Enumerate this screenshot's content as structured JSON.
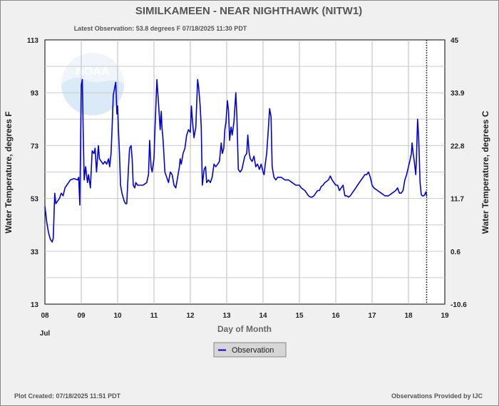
{
  "chart_data": {
    "type": "line",
    "title": "SIMILKAMEEN - NEAR NIGHTHAWK  (NITW1)",
    "subtitle": "Latest Observation: 53.8 degrees F 07/18/2025 11:30 PDT",
    "ylabel": "Water Temperature, degrees F",
    "ylabel_right": "Water Temperature, degrees C",
    "xlabel": "Day of Month",
    "x_sublabel": "Jul",
    "xlim": [
      8,
      19
    ],
    "ylim": [
      13,
      113
    ],
    "x_ticks": [
      "08",
      "09",
      "10",
      "11",
      "12",
      "13",
      "14",
      "15",
      "16",
      "17",
      "18",
      "19"
    ],
    "y_ticks": [
      "13",
      "33",
      "53",
      "73",
      "93",
      "113"
    ],
    "y_ticks_right": [
      "-10.6",
      "0.6",
      "11.7",
      "22.8",
      "33.9",
      "45"
    ],
    "latest_observation_x": 18.5,
    "grid": true,
    "legend_position": "bottom",
    "series": [
      {
        "name": "Observation",
        "color": "#0000dd",
        "points": [
          [
            8.0,
            50
          ],
          [
            8.05,
            44
          ],
          [
            8.1,
            40
          ],
          [
            8.15,
            37.5
          ],
          [
            8.2,
            36.5
          ],
          [
            8.23,
            38
          ],
          [
            8.27,
            55
          ],
          [
            8.3,
            51
          ],
          [
            8.35,
            52
          ],
          [
            8.4,
            53
          ],
          [
            8.45,
            55
          ],
          [
            8.5,
            54
          ],
          [
            8.55,
            57
          ],
          [
            8.6,
            58
          ],
          [
            8.65,
            59
          ],
          [
            8.7,
            60
          ],
          [
            8.8,
            60.5
          ],
          [
            8.9,
            60
          ],
          [
            8.93,
            61
          ],
          [
            8.96,
            50.5
          ],
          [
            9.0,
            96
          ],
          [
            9.03,
            98
          ],
          [
            9.05,
            80
          ],
          [
            9.08,
            60
          ],
          [
            9.12,
            65
          ],
          [
            9.17,
            59
          ],
          [
            9.2,
            62
          ],
          [
            9.25,
            57
          ],
          [
            9.3,
            71
          ],
          [
            9.35,
            70
          ],
          [
            9.38,
            72
          ],
          [
            9.42,
            63
          ],
          [
            9.47,
            73
          ],
          [
            9.5,
            68
          ],
          [
            9.55,
            67
          ],
          [
            9.6,
            66
          ],
          [
            9.65,
            67
          ],
          [
            9.7,
            66
          ],
          [
            9.75,
            68
          ],
          [
            9.78,
            65
          ],
          [
            9.82,
            70
          ],
          [
            9.85,
            80
          ],
          [
            9.88,
            92
          ],
          [
            9.92,
            95
          ],
          [
            9.95,
            97
          ],
          [
            9.98,
            85
          ],
          [
            10.0,
            88
          ],
          [
            10.02,
            80
          ],
          [
            10.05,
            70
          ],
          [
            10.08,
            58
          ],
          [
            10.12,
            55
          ],
          [
            10.18,
            52
          ],
          [
            10.22,
            51
          ],
          [
            10.25,
            51
          ],
          [
            10.3,
            65
          ],
          [
            10.33,
            72
          ],
          [
            10.37,
            73
          ],
          [
            10.4,
            68
          ],
          [
            10.43,
            58
          ],
          [
            10.47,
            57
          ],
          [
            10.5,
            59
          ],
          [
            10.55,
            58
          ],
          [
            10.6,
            58
          ],
          [
            10.7,
            58
          ],
          [
            10.8,
            59
          ],
          [
            10.85,
            62
          ],
          [
            10.88,
            75
          ],
          [
            10.92,
            65
          ],
          [
            10.95,
            63
          ],
          [
            11.0,
            68
          ],
          [
            11.03,
            80
          ],
          [
            11.08,
            98
          ],
          [
            11.1,
            94
          ],
          [
            11.13,
            88
          ],
          [
            11.17,
            79
          ],
          [
            11.2,
            86
          ],
          [
            11.22,
            80
          ],
          [
            11.25,
            75
          ],
          [
            11.3,
            63
          ],
          [
            11.35,
            61
          ],
          [
            11.4,
            59
          ],
          [
            11.45,
            63
          ],
          [
            11.5,
            62
          ],
          [
            11.55,
            58
          ],
          [
            11.6,
            57
          ],
          [
            11.65,
            61
          ],
          [
            11.7,
            65
          ],
          [
            11.72,
            68
          ],
          [
            11.75,
            66
          ],
          [
            11.8,
            70
          ],
          [
            11.85,
            72
          ],
          [
            11.9,
            77
          ],
          [
            11.95,
            79
          ],
          [
            12.0,
            78
          ],
          [
            12.03,
            88
          ],
          [
            12.06,
            82
          ],
          [
            12.1,
            76
          ],
          [
            12.15,
            80
          ],
          [
            12.2,
            98
          ],
          [
            12.23,
            95
          ],
          [
            12.27,
            88
          ],
          [
            12.3,
            80
          ],
          [
            12.33,
            58
          ],
          [
            12.38,
            64
          ],
          [
            12.42,
            65
          ],
          [
            12.45,
            59
          ],
          [
            12.5,
            60
          ],
          [
            12.55,
            59
          ],
          [
            12.6,
            61
          ],
          [
            12.65,
            66
          ],
          [
            12.7,
            65
          ],
          [
            12.75,
            66
          ],
          [
            12.8,
            67
          ],
          [
            12.85,
            74
          ],
          [
            12.88,
            70
          ],
          [
            12.92,
            72
          ],
          [
            12.95,
            79
          ],
          [
            12.98,
            82
          ],
          [
            13.02,
            90
          ],
          [
            13.05,
            86
          ],
          [
            13.08,
            75
          ],
          [
            13.12,
            80
          ],
          [
            13.15,
            77
          ],
          [
            13.2,
            82
          ],
          [
            13.25,
            93
          ],
          [
            13.28,
            84
          ],
          [
            13.32,
            64
          ],
          [
            13.37,
            63
          ],
          [
            13.42,
            64
          ],
          [
            13.45,
            66
          ],
          [
            13.5,
            69
          ],
          [
            13.55,
            70
          ],
          [
            13.58,
            77
          ],
          [
            13.62,
            70
          ],
          [
            13.65,
            68
          ],
          [
            13.7,
            67
          ],
          [
            13.75,
            69
          ],
          [
            13.8,
            65
          ],
          [
            13.85,
            66
          ],
          [
            13.9,
            64
          ],
          [
            13.95,
            66
          ],
          [
            14.0,
            63
          ],
          [
            14.03,
            62
          ],
          [
            14.06,
            66
          ],
          [
            14.1,
            70
          ],
          [
            14.15,
            80
          ],
          [
            14.18,
            87
          ],
          [
            14.22,
            84
          ],
          [
            14.25,
            65
          ],
          [
            14.3,
            61
          ],
          [
            14.35,
            60
          ],
          [
            14.4,
            61
          ],
          [
            14.45,
            61
          ],
          [
            14.5,
            61
          ],
          [
            14.6,
            60
          ],
          [
            14.7,
            60
          ],
          [
            14.8,
            59
          ],
          [
            14.9,
            58
          ],
          [
            15.0,
            58
          ],
          [
            15.05,
            57
          ],
          [
            15.15,
            56
          ],
          [
            15.2,
            55
          ],
          [
            15.25,
            54
          ],
          [
            15.3,
            53.5
          ],
          [
            15.35,
            53.5
          ],
          [
            15.4,
            54
          ],
          [
            15.45,
            55
          ],
          [
            15.5,
            56
          ],
          [
            15.55,
            56
          ],
          [
            15.6,
            57.5
          ],
          [
            15.65,
            58
          ],
          [
            15.7,
            59
          ],
          [
            15.75,
            59.5
          ],
          [
            15.8,
            60
          ],
          [
            15.85,
            61.5
          ],
          [
            15.9,
            60
          ],
          [
            15.95,
            59
          ],
          [
            16.0,
            58
          ],
          [
            16.05,
            58
          ],
          [
            16.1,
            56
          ],
          [
            16.15,
            57
          ],
          [
            16.2,
            58
          ],
          [
            16.25,
            54
          ],
          [
            16.3,
            54
          ],
          [
            16.35,
            53.5
          ],
          [
            16.4,
            54
          ],
          [
            16.45,
            55
          ],
          [
            16.5,
            56
          ],
          [
            16.55,
            57
          ],
          [
            16.6,
            58
          ],
          [
            16.65,
            59
          ],
          [
            16.7,
            60
          ],
          [
            16.75,
            61
          ],
          [
            16.8,
            62
          ],
          [
            16.85,
            62
          ],
          [
            16.9,
            63
          ],
          [
            16.95,
            61
          ],
          [
            17.0,
            58
          ],
          [
            17.05,
            57
          ],
          [
            17.15,
            56
          ],
          [
            17.25,
            55
          ],
          [
            17.3,
            54.5
          ],
          [
            17.35,
            54
          ],
          [
            17.45,
            54
          ],
          [
            17.55,
            55
          ],
          [
            17.65,
            56
          ],
          [
            17.7,
            57
          ],
          [
            17.75,
            55
          ],
          [
            17.8,
            55
          ],
          [
            17.85,
            56
          ],
          [
            17.9,
            60
          ],
          [
            17.95,
            62
          ],
          [
            18.0,
            65
          ],
          [
            18.05,
            68
          ],
          [
            18.08,
            70
          ],
          [
            18.1,
            74
          ],
          [
            18.13,
            70
          ],
          [
            18.16,
            67
          ],
          [
            18.2,
            62
          ],
          [
            18.22,
            68
          ],
          [
            18.25,
            83
          ],
          [
            18.28,
            76
          ],
          [
            18.32,
            59
          ],
          [
            18.35,
            54.5
          ],
          [
            18.38,
            54
          ],
          [
            18.42,
            54
          ],
          [
            18.45,
            54.5
          ],
          [
            18.48,
            55.5
          ],
          [
            18.5,
            53.8
          ]
        ]
      }
    ]
  },
  "footer": {
    "created": "Plot Created: 07/18/2025 11:51 PDT",
    "provider": "Observations Provided by IJC"
  }
}
